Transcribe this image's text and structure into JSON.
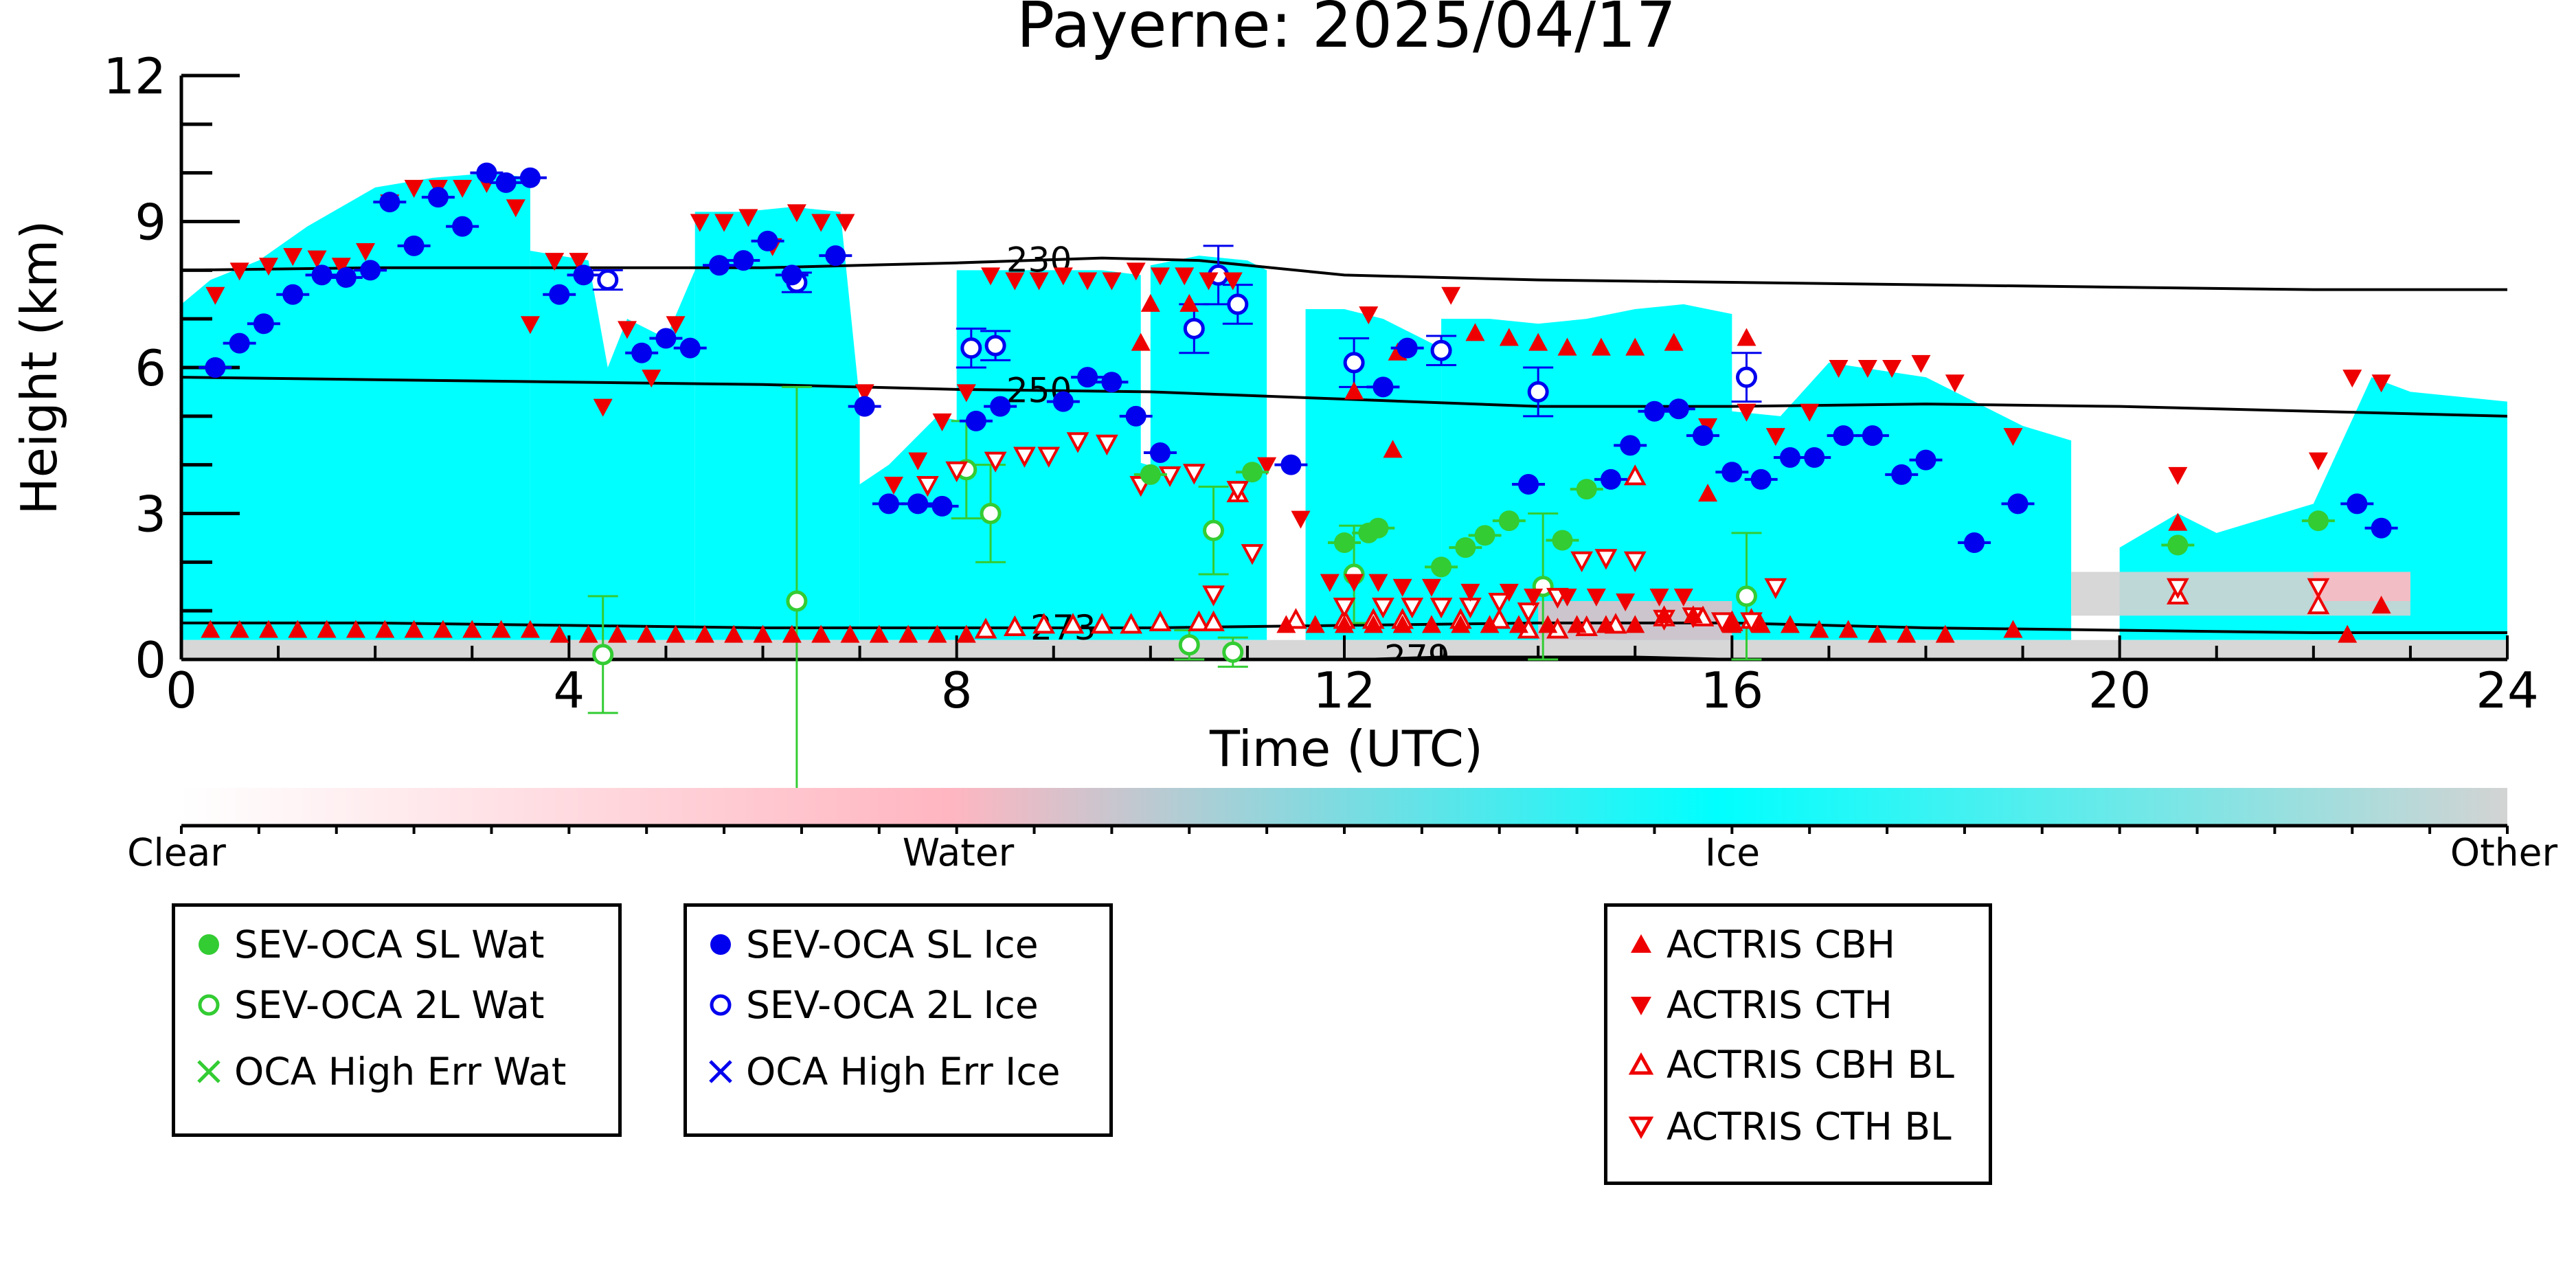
{
  "chart_data": {
    "type": "scatter",
    "title": "Payerne: 2025/04/17",
    "xlabel": "Time (UTC)",
    "ylabel": "Height (km)",
    "xlim": [
      0,
      24
    ],
    "ylim": [
      0,
      12
    ],
    "x_ticks": [
      0,
      4,
      8,
      12,
      16,
      20,
      24
    ],
    "y_ticks": [
      0,
      3,
      6,
      9,
      12
    ],
    "x_tick_labels": [
      "0",
      "4",
      "8",
      "12",
      "16",
      "20",
      "24"
    ],
    "y_tick_labels": [
      "0",
      "3",
      "6",
      "9",
      "12"
    ],
    "grid": false,
    "background": {
      "type": "cloud-classification",
      "colorbar_labels": [
        "Clear",
        "Water",
        "Ice",
        "Other"
      ],
      "colorbar_colors": [
        "#ffffff",
        "#ffb6c1",
        "#00ffff",
        "#d3d3d3"
      ],
      "ice_segments": [
        {
          "x": [
            0.0,
            0.3,
            0.8,
            1.3,
            2.0,
            2.6,
            3.2,
            3.6
          ],
          "top": [
            7.3,
            7.8,
            8.2,
            8.9,
            9.7,
            9.9,
            10.0,
            9.9
          ]
        },
        {
          "x": [
            3.6,
            3.9,
            4.2,
            4.4,
            4.6,
            5.0,
            5.3
          ],
          "top": [
            8.4,
            8.3,
            8.2,
            6.0,
            7.0,
            6.6,
            8.0
          ]
        },
        {
          "x": [
            5.3,
            5.8,
            6.3,
            6.8,
            7.0
          ],
          "top": [
            9.2,
            9.2,
            9.3,
            9.2,
            5.3
          ]
        },
        {
          "x": [
            7.0,
            7.3,
            7.8,
            8.3,
            8.8,
            9.3,
            9.8,
            10.3
          ],
          "top": [
            3.6,
            4.0,
            5.0,
            4.8,
            4.6,
            4.6,
            4.1,
            3.8
          ]
        },
        {
          "x": [
            8.0,
            8.5,
            9.0,
            9.5,
            9.9
          ],
          "top": [
            8.0,
            8.0,
            8.0,
            8.0,
            7.9
          ]
        },
        {
          "x": [
            10.0,
            10.5,
            11.0,
            11.2
          ],
          "top": [
            8.1,
            8.3,
            8.2,
            8.0
          ]
        },
        {
          "x": [
            11.6,
            12.0,
            12.4,
            12.8,
            13.0
          ],
          "top": [
            7.2,
            7.2,
            7.0,
            6.6,
            6.4
          ]
        },
        {
          "x": [
            13.0,
            13.5,
            14.0,
            14.5,
            15.0,
            15.5,
            16.0
          ],
          "top": [
            7.0,
            7.0,
            6.9,
            7.0,
            7.2,
            7.3,
            7.1
          ]
        },
        {
          "x": [
            14.8,
            15.5,
            16.5,
            17.0,
            18.0,
            19.0,
            19.5
          ],
          "top": [
            4.5,
            5.2,
            5.0,
            6.1,
            5.8,
            4.8,
            4.5
          ]
        },
        {
          "x": [
            20.0,
            20.6,
            21.0,
            22.0,
            22.6,
            23.0,
            24.0
          ],
          "top": [
            2.3,
            3.0,
            2.6,
            3.2,
            5.8,
            5.5,
            5.3
          ]
        }
      ],
      "gray_bands": [
        {
          "x": [
            0,
            24
          ],
          "low": 0,
          "high": 0.4
        },
        {
          "x": [
            19.5,
            23
          ],
          "low": 0.9,
          "high": 1.8
        }
      ],
      "pink_bands": [
        {
          "x": [
            14.0,
            16.0
          ],
          "low": 0.4,
          "high": 1.2
        },
        {
          "x": [
            22.0,
            23.0
          ],
          "low": 1.2,
          "high": 1.8
        }
      ]
    },
    "contours": [
      {
        "label": "230",
        "label_x": 8.85,
        "x": [
          0,
          2,
          4,
          6,
          8,
          9.5,
          10.5,
          12,
          14,
          16,
          18,
          20,
          22,
          24
        ],
        "y": [
          8.0,
          8.05,
          8.05,
          8.05,
          8.15,
          8.25,
          8.2,
          7.9,
          7.8,
          7.75,
          7.7,
          7.65,
          7.6,
          7.6
        ]
      },
      {
        "label": "250",
        "label_x": 8.85,
        "x": [
          0,
          2,
          4,
          6,
          8,
          10,
          12,
          14,
          16,
          18,
          20,
          22,
          24
        ],
        "y": [
          5.8,
          5.75,
          5.7,
          5.65,
          5.55,
          5.5,
          5.35,
          5.2,
          5.2,
          5.25,
          5.2,
          5.1,
          5.0
        ]
      },
      {
        "label": "273",
        "label_x": 9.1,
        "x": [
          0,
          2,
          4,
          6,
          8,
          10,
          12,
          14,
          16,
          18,
          20,
          22,
          24
        ],
        "y": [
          0.75,
          0.75,
          0.7,
          0.65,
          0.65,
          0.65,
          0.7,
          0.75,
          0.75,
          0.65,
          0.6,
          0.55,
          0.55
        ]
      },
      {
        "label": "279",
        "label_x": 12.75,
        "x": [
          12.2,
          13.0,
          14.0,
          15.0,
          16.0
        ],
        "y": [
          0.0,
          0.05,
          0.05,
          0.05,
          0.0
        ]
      }
    ],
    "series": [
      {
        "name": "SEV-OCA SL Wat",
        "marker": "filled-circle",
        "color": "#33cc33",
        "x": [
          10.0,
          11.05,
          12.0,
          12.25,
          12.35,
          13.0,
          13.25,
          13.45,
          13.7,
          14.25,
          14.5,
          20.6,
          22.05
        ],
        "y": [
          3.8,
          3.85,
          2.4,
          2.6,
          2.7,
          1.9,
          2.3,
          2.55,
          2.85,
          2.45,
          3.5,
          2.35,
          2.85
        ]
      },
      {
        "name": "SEV-OCA 2L Wat",
        "marker": "open-circle",
        "color": "#33cc33",
        "x": [
          4.35,
          6.35,
          8.1,
          8.35,
          10.4,
          10.65,
          10.85,
          12.1,
          14.05,
          16.15
        ],
        "y": [
          0.1,
          1.2,
          3.9,
          3.0,
          0.3,
          2.65,
          0.15,
          1.75,
          1.5,
          1.3
        ],
        "err": [
          1.2,
          4.4,
          1.0,
          1.0,
          0.3,
          0.9,
          0.3,
          1.0,
          1.5,
          1.3
        ]
      },
      {
        "name": "OCA High Err Wat",
        "marker": "x",
        "color": "#33cc33",
        "x": [],
        "y": []
      },
      {
        "name": "SEV-OCA SL Ice",
        "marker": "filled-circle",
        "color": "#0000ee",
        "x": [
          0.35,
          0.6,
          0.85,
          1.15,
          1.45,
          1.7,
          1.95,
          2.15,
          2.4,
          2.65,
          2.9,
          3.15,
          3.35,
          3.6,
          3.9,
          4.15,
          4.75,
          5.0,
          5.25,
          5.55,
          5.8,
          6.05,
          6.3,
          6.75,
          7.05,
          7.3,
          7.6,
          7.85,
          8.2,
          8.45,
          9.1,
          9.35,
          9.6,
          9.85,
          10.1,
          11.45,
          12.4,
          12.65,
          13.9,
          14.75,
          14.95,
          15.2,
          15.45,
          15.7,
          16.0,
          16.3,
          16.6,
          16.85,
          17.15,
          17.45,
          17.75,
          18.0,
          18.5,
          18.95,
          22.45,
          22.7
        ],
        "y": [
          6.0,
          6.5,
          6.9,
          7.5,
          7.9,
          7.85,
          8.0,
          9.4,
          8.5,
          9.5,
          8.9,
          10.0,
          9.8,
          9.9,
          7.5,
          7.9,
          6.3,
          6.6,
          6.4,
          8.1,
          8.2,
          8.6,
          7.9,
          8.3,
          5.2,
          3.2,
          3.2,
          3.15,
          4.9,
          5.2,
          5.3,
          5.8,
          5.7,
          5.0,
          4.25,
          4.0,
          5.6,
          6.4,
          3.6,
          3.7,
          4.4,
          5.1,
          5.15,
          4.6,
          3.85,
          3.7,
          4.15,
          4.15,
          4.6,
          4.6,
          3.8,
          4.1,
          2.4,
          3.2,
          3.2,
          2.7
        ]
      },
      {
        "name": "SEV-OCA 2L Ice",
        "marker": "open-circle",
        "color": "#0000ee",
        "x": [
          4.4,
          6.35,
          8.15,
          8.4,
          10.45,
          10.7,
          10.9,
          12.1,
          13.0,
          14.0,
          16.15
        ],
        "y": [
          7.8,
          7.75,
          6.4,
          6.45,
          6.8,
          7.9,
          7.3,
          6.1,
          6.35,
          5.5,
          5.8
        ],
        "err": [
          0.2,
          0.2,
          0.4,
          0.3,
          0.5,
          0.6,
          0.4,
          0.5,
          0.3,
          0.5,
          0.5
        ]
      },
      {
        "name": "OCA High Err Ice",
        "marker": "x",
        "color": "#0000ee",
        "x": [],
        "y": []
      },
      {
        "name": "ACTRIS CBH",
        "marker": "triangle-up",
        "color": "#ee0000",
        "x": [
          0.3,
          0.6,
          0.9,
          1.2,
          1.5,
          1.8,
          2.1,
          2.4,
          2.7,
          3.0,
          3.3,
          3.6,
          3.9,
          4.2,
          4.5,
          4.8,
          5.1,
          5.4,
          5.7,
          6.0,
          6.3,
          6.6,
          6.9,
          7.2,
          7.5,
          7.8,
          8.1,
          11.4,
          11.7,
          12.0,
          12.3,
          12.6,
          12.9,
          13.2,
          13.5,
          13.8,
          14.1,
          14.4,
          14.7,
          15.0,
          15.3,
          15.6,
          16.0,
          16.3,
          16.6,
          16.9,
          17.2,
          17.5,
          17.8,
          18.2,
          18.9,
          10.0,
          10.4,
          9.9,
          12.1,
          12.5,
          12.55,
          13.35,
          13.7,
          14.0,
          14.3,
          14.65,
          15.0,
          15.4,
          15.75,
          16.15,
          22.35,
          22.7,
          20.6
        ],
        "y": [
          0.6,
          0.6,
          0.6,
          0.6,
          0.6,
          0.6,
          0.6,
          0.6,
          0.6,
          0.6,
          0.6,
          0.6,
          0.5,
          0.5,
          0.5,
          0.5,
          0.5,
          0.5,
          0.5,
          0.5,
          0.5,
          0.5,
          0.5,
          0.5,
          0.5,
          0.5,
          0.5,
          0.7,
          0.7,
          0.7,
          0.7,
          0.7,
          0.7,
          0.7,
          0.7,
          0.7,
          0.7,
          0.7,
          0.7,
          0.7,
          0.9,
          0.9,
          0.7,
          0.7,
          0.7,
          0.6,
          0.6,
          0.5,
          0.5,
          0.5,
          0.6,
          7.3,
          7.3,
          6.5,
          5.5,
          4.3,
          6.3,
          6.7,
          6.6,
          6.5,
          6.4,
          6.4,
          6.4,
          6.5,
          3.4,
          6.6,
          0.5,
          1.1,
          2.8
        ]
      },
      {
        "name": "ACTRIS CTH",
        "marker": "triangle-down",
        "color": "#ee0000",
        "x": [
          0.35,
          0.6,
          0.9,
          1.15,
          1.4,
          1.65,
          1.9,
          2.15,
          2.4,
          2.65,
          2.9,
          3.15,
          3.45,
          3.6,
          3.85,
          4.1,
          4.35,
          4.6,
          4.85,
          5.1,
          5.35,
          5.6,
          5.85,
          6.1,
          6.35,
          6.6,
          6.85,
          7.05,
          7.35,
          7.6,
          7.85,
          8.1,
          8.35,
          8.6,
          8.85,
          9.1,
          9.35,
          9.6,
          9.85,
          10.1,
          10.35,
          10.6,
          10.85,
          11.2,
          11.55,
          11.85,
          12.1,
          12.35,
          12.6,
          12.9,
          13.3,
          13.7,
          13.95,
          14.3,
          14.6,
          14.9,
          15.25,
          15.5,
          15.75,
          16.15,
          16.45,
          16.8,
          17.1,
          17.4,
          17.65,
          17.95,
          18.3,
          18.9,
          20.6,
          22.05,
          22.4,
          22.7,
          12.25,
          13.1
        ],
        "y": [
          7.5,
          8.0,
          8.1,
          8.3,
          8.25,
          8.1,
          8.4,
          9.4,
          9.7,
          9.7,
          9.7,
          9.8,
          9.3,
          6.9,
          8.2,
          8.2,
          5.2,
          6.8,
          5.8,
          6.9,
          9.0,
          9.0,
          9.1,
          8.5,
          9.2,
          9.0,
          9.0,
          5.5,
          3.6,
          4.1,
          4.9,
          5.5,
          7.9,
          7.8,
          7.8,
          7.9,
          7.8,
          7.8,
          8.0,
          7.9,
          7.9,
          7.8,
          7.8,
          4.0,
          2.9,
          1.6,
          1.6,
          1.6,
          1.5,
          1.5,
          1.4,
          1.4,
          1.3,
          1.3,
          1.3,
          1.2,
          1.3,
          1.3,
          4.8,
          5.1,
          4.6,
          5.1,
          6.0,
          6.0,
          6.0,
          6.1,
          5.7,
          4.6,
          3.8,
          4.1,
          5.8,
          5.7,
          7.1,
          7.5
        ],
        "extra_note": ""
      },
      {
        "name": "ACTRIS CBH BL",
        "marker": "open-triangle-up",
        "color": "#ee0000",
        "x": [
          8.3,
          8.6,
          8.9,
          9.2,
          9.5,
          9.8,
          10.1,
          10.5,
          10.65,
          10.9,
          11.5,
          12.0,
          12.3,
          12.6,
          13.2,
          13.6,
          13.9,
          14.2,
          14.5,
          14.8,
          15.0,
          15.3,
          15.7,
          16.0,
          16.2,
          20.6,
          22.05
        ],
        "y": [
          0.6,
          0.65,
          0.7,
          0.7,
          0.7,
          0.7,
          0.75,
          0.75,
          0.75,
          3.4,
          0.8,
          0.8,
          0.8,
          0.8,
          0.8,
          0.8,
          0.6,
          0.6,
          0.65,
          0.7,
          3.75,
          0.85,
          0.85,
          0.75,
          0.8,
          1.3,
          1.1
        ]
      },
      {
        "name": "ACTRIS CTH BL",
        "marker": "open-triangle-down",
        "color": "#ee0000",
        "x": [
          7.7,
          8.0,
          8.4,
          8.7,
          8.95,
          9.25,
          9.55,
          9.9,
          10.2,
          10.45,
          10.65,
          10.9,
          11.05,
          12.0,
          12.4,
          12.7,
          13.0,
          13.3,
          13.6,
          13.9,
          14.2,
          14.45,
          14.7,
          15.0,
          15.3,
          15.6,
          15.9,
          16.2,
          16.45,
          20.6,
          22.05
        ],
        "y": [
          3.6,
          3.9,
          4.1,
          4.2,
          4.2,
          4.5,
          4.45,
          3.6,
          3.8,
          3.85,
          1.35,
          3.5,
          2.2,
          1.1,
          1.1,
          1.1,
          1.1,
          1.1,
          1.2,
          1.0,
          1.3,
          2.05,
          2.1,
          2.05,
          0.85,
          0.9,
          0.8,
          0.8,
          1.5,
          1.5,
          1.5
        ]
      }
    ],
    "legends": [
      {
        "position": "bottom-left",
        "entries": [
          "SEV-OCA SL Wat",
          "SEV-OCA 2L Wat",
          "OCA High Err Wat"
        ]
      },
      {
        "position": "bottom-center-left",
        "entries": [
          "SEV-OCA SL Ice",
          "SEV-OCA 2L Ice",
          "OCA High Err Ice"
        ]
      },
      {
        "position": "bottom-right",
        "entries": [
          "ACTRIS CBH",
          "ACTRIS CTH",
          "ACTRIS CBH BL",
          "ACTRIS CTH BL"
        ]
      }
    ]
  }
}
